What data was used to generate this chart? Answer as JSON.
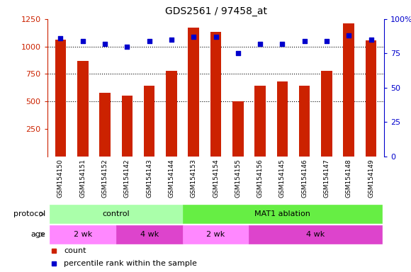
{
  "title": "GDS2561 / 97458_at",
  "samples": [
    "GSM154150",
    "GSM154151",
    "GSM154152",
    "GSM154142",
    "GSM154143",
    "GSM154144",
    "GSM154153",
    "GSM154154",
    "GSM154155",
    "GSM154156",
    "GSM154145",
    "GSM154146",
    "GSM154147",
    "GSM154148",
    "GSM154149"
  ],
  "counts": [
    1060,
    870,
    580,
    555,
    645,
    780,
    1170,
    1130,
    500,
    645,
    680,
    645,
    780,
    1210,
    1055
  ],
  "percentiles": [
    86,
    84,
    82,
    80,
    84,
    85,
    87,
    87,
    75,
    82,
    82,
    84,
    84,
    88,
    85
  ],
  "ylim_left": [
    0,
    1250
  ],
  "ylim_right": [
    0,
    100
  ],
  "yticks_left": [
    250,
    500,
    750,
    1000,
    1250
  ],
  "yticks_right": [
    0,
    25,
    50,
    75,
    100
  ],
  "bar_color": "#cc2200",
  "dot_color": "#0000cc",
  "bg_color": "#ffffff",
  "xticklabel_bg": "#cccccc",
  "protocol_control_color": "#aaffaa",
  "protocol_ablation_color": "#66ee44",
  "age_2wk_color": "#ff88ff",
  "age_4wk_color": "#dd44cc",
  "protocol_label": "protocol",
  "age_label": "age",
  "legend_count": "count",
  "legend_percentile": "percentile rank within the sample",
  "protocol_groups": [
    {
      "label": "control",
      "start": 0,
      "end": 6
    },
    {
      "label": "MAT1 ablation",
      "start": 6,
      "end": 15
    }
  ],
  "age_groups": [
    {
      "label": "2 wk",
      "start": 0,
      "end": 3
    },
    {
      "label": "4 wk",
      "start": 3,
      "end": 6
    },
    {
      "label": "2 wk",
      "start": 6,
      "end": 9
    },
    {
      "label": "4 wk",
      "start": 9,
      "end": 15
    }
  ]
}
